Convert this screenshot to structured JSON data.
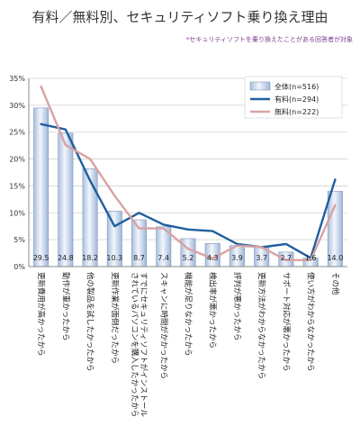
{
  "chart_data": {
    "type": "bar",
    "title": "有料／無料別、セキュリティソフト乗り換え理由",
    "note": "*セキュリティソフトを乗り換えたことがある回答者が対象",
    "ylim": [
      0,
      35
    ],
    "yticks": [
      "0%",
      "5%",
      "10%",
      "15%",
      "20%",
      "25%",
      "30%",
      "35%"
    ],
    "categories": [
      "更新費用が高かったから",
      "動作が重かったから",
      "他の製品を試したかったから",
      "更新作業が面倒だったから",
      "すでにセキュリティソフトがインストールされているパソコンを購入したかったから",
      "スキャンに時間がかかったから",
      "機能が足りなかったから",
      "検出率が悪かったから",
      "評判が悪かったから",
      "更新方法がわからなかったから",
      "サポート対応が悪かったから",
      "使い方がわからなかったから",
      "その他"
    ],
    "series": [
      {
        "name": "全体(n=516)",
        "kind": "bar",
        "color": "#c9d6ea",
        "values": [
          29.5,
          24.8,
          18.2,
          10.3,
          8.7,
          7.4,
          5.2,
          4.3,
          3.9,
          3.7,
          2.7,
          1.6,
          14.0
        ]
      },
      {
        "name": "有料(n=294)",
        "kind": "line",
        "color": "#1f5fa0",
        "values": [
          26.5,
          25.5,
          16.0,
          7.5,
          10.0,
          7.8,
          6.9,
          6.6,
          4.2,
          3.6,
          4.2,
          1.6,
          16.2
        ]
      },
      {
        "name": "無料(n=222)",
        "kind": "line",
        "color": "#d8a2a4",
        "values": [
          33.5,
          22.6,
          20.0,
          13.2,
          7.1,
          7.1,
          3.3,
          1.5,
          3.9,
          3.6,
          1.2,
          1.2,
          11.4
        ]
      }
    ],
    "data_labels": [
      "29.5",
      "24.8",
      "18.2",
      "10.3",
      "8.7",
      "7.4",
      "5.2",
      "4.3",
      "3.9",
      "3.7",
      "2.7",
      "1.6",
      "14.0"
    ],
    "legend_position": "top-right",
    "grid": true
  }
}
